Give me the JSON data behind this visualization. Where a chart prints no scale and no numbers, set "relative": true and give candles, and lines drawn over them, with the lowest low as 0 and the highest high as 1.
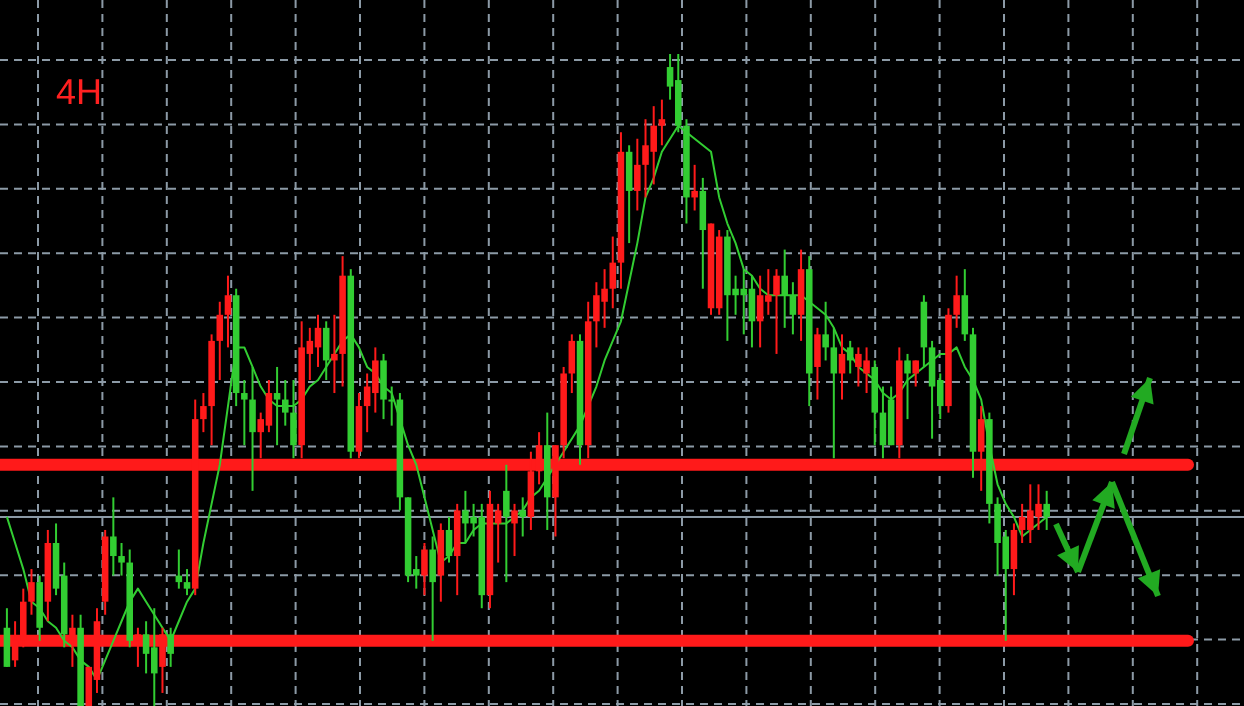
{
  "chart_data": {
    "type": "candlestick",
    "title": "4H",
    "relative": true,
    "grid": true,
    "colors": [
      "#32cd32",
      "#ff1a1a",
      "#ff1a1a",
      "#ff1a1a",
      "#32cd32",
      "#ff1a1a",
      "#32cd32",
      "#32cd32",
      "#ff1a1a",
      "#32cd32",
      "#ff1a1a",
      "#ff1a1a",
      "#ff1a1a",
      "#32cd32",
      "#32cd32",
      "#32cd32",
      "#ff1a1a",
      "#32cd32",
      "#32cd32",
      "#ff1a1a",
      "#32cd32",
      "#32cd32",
      "#32cd32",
      "#ff1a1a",
      "#ff1a1a",
      "#ff1a1a",
      "#ff1a1a",
      "#ff1a1a",
      "#32cd32",
      "#32cd32",
      "#32cd32",
      "#ff1a1a",
      "#ff1a1a",
      "#32cd32",
      "#32cd32",
      "#32cd32",
      "#ff1a1a",
      "#ff1a1a",
      "#ff1a1a",
      "#32cd32",
      "#ff1a1a",
      "#ff1a1a",
      "#32cd32",
      "#ff1a1a",
      "#ff1a1a",
      "#ff1a1a",
      "#32cd32",
      "#32cd32",
      "#32cd32",
      "#32cd32",
      "#32cd32",
      "#ff1a1a",
      "#32cd32",
      "#ff1a1a",
      "#32cd32",
      "#ff1a1a",
      "#32cd32",
      "#32cd32",
      "#32cd32",
      "#ff1a1a",
      "#ff1a1a",
      "#32cd32",
      "#ff1a1a",
      "#32cd32",
      "#ff1a1a",
      "#ff1a1a",
      "#32cd32",
      "#ff1a1a",
      "#ff1a1a",
      "#ff1a1a",
      "#32cd32",
      "#ff1a1a",
      "#ff1a1a",
      "#ff1a1a",
      "#ff1a1a",
      "#ff1a1a",
      "#32cd32",
      "#ff1a1a",
      "#ff1a1a",
      "#ff1a1a",
      "#ff1a1a",
      "#32cd32",
      "#32cd32",
      "#32cd32",
      "#ff1a1a",
      "#32cd32",
      "#ff1a1a",
      "#ff1a1a",
      "#32cd32",
      "#32cd32",
      "#32cd32",
      "#32cd32",
      "#ff1a1a",
      "#ff1a1a",
      "#ff1a1a",
      "#32cd32",
      "#32cd32",
      "#ff1a1a",
      "#32cd32",
      "#ff1a1a",
      "#32cd32",
      "#32cd32",
      "#ff1a1a",
      "#32cd32",
      "#ff1a1a",
      "#ff1a1a",
      "#32cd32",
      "#32cd32",
      "#32cd32",
      "#ff1a1a",
      "#32cd32",
      "#ff1a1a",
      "#32cd32",
      "#32cd32",
      "#32cd32",
      "#ff1a1a",
      "#ff1a1a",
      "#32cd32",
      "#32cd32",
      "#ff1a1a",
      "#32cd32",
      "#32cd32",
      "#32cd32",
      "#ff1a1a",
      "#ff1a1a",
      "#ff1a1a",
      "#ff1a1a",
      "#32cd32"
    ],
    "categories": [
      null,
      null,
      null,
      null,
      null,
      null,
      null,
      null,
      null,
      null,
      null,
      null,
      null,
      null,
      null,
      null,
      null,
      null,
      null,
      null,
      null,
      null,
      null,
      null,
      null,
      null,
      null,
      null,
      null,
      null,
      null,
      null,
      null,
      null,
      null,
      null,
      null,
      null,
      null,
      null,
      null,
      null,
      null,
      null,
      null,
      null,
      null,
      null,
      null,
      null,
      null,
      null,
      null,
      null,
      null,
      null,
      null,
      null,
      null,
      null,
      null,
      null,
      null,
      null,
      null,
      null,
      null,
      null,
      null,
      null,
      null,
      null,
      null,
      null,
      null,
      null,
      null,
      null,
      null,
      null,
      null,
      null,
      null,
      null,
      null,
      null,
      null,
      null,
      null,
      null,
      null,
      null,
      null,
      null,
      null,
      null,
      null,
      null,
      null,
      null,
      null,
      null,
      null,
      null,
      null,
      null,
      null,
      null,
      null,
      null,
      null,
      null,
      null,
      null,
      null,
      null,
      null,
      null,
      null,
      null,
      null,
      null,
      null,
      null,
      null,
      null,
      null,
      null
    ],
    "ohlc": [
      [
        0.12,
        0.15,
        0.06,
        0.06
      ],
      [
        0.07,
        0.13,
        0.06,
        0.1
      ],
      [
        0.1,
        0.18,
        0.09,
        0.16
      ],
      [
        0.16,
        0.21,
        0.14,
        0.19
      ],
      [
        0.19,
        0.2,
        0.1,
        0.12
      ],
      [
        0.16,
        0.27,
        0.13,
        0.25
      ],
      [
        0.25,
        0.28,
        0.17,
        0.18
      ],
      [
        0.2,
        0.22,
        0.09,
        0.11
      ],
      [
        0.1,
        0.14,
        0.06,
        0.12
      ],
      [
        0.12,
        0.14,
        0.0,
        0.0
      ],
      [
        0.0,
        0.06,
        0.0,
        0.06
      ],
      [
        0.04,
        0.15,
        0.02,
        0.13
      ],
      [
        0.16,
        0.27,
        0.14,
        0.26
      ],
      [
        0.26,
        0.32,
        0.2,
        0.23
      ],
      [
        0.23,
        0.25,
        0.2,
        0.22
      ],
      [
        0.22,
        0.24,
        0.09,
        0.1
      ],
      [
        0.1,
        0.12,
        0.06,
        0.11
      ],
      [
        0.11,
        0.13,
        0.05,
        0.08
      ],
      [
        0.09,
        0.15,
        0.0,
        0.05
      ],
      [
        0.06,
        0.12,
        0.02,
        0.11
      ],
      [
        0.11,
        0.12,
        0.06,
        0.08
      ],
      [
        0.2,
        0.24,
        0.18,
        0.19
      ],
      [
        0.19,
        0.21,
        0.17,
        0.18
      ],
      [
        0.18,
        0.47,
        0.17,
        0.44
      ],
      [
        0.44,
        0.48,
        0.42,
        0.46
      ],
      [
        0.46,
        0.57,
        0.4,
        0.56
      ],
      [
        0.56,
        0.62,
        0.5,
        0.6
      ],
      [
        0.6,
        0.66,
        0.55,
        0.63
      ],
      [
        0.63,
        0.64,
        0.46,
        0.48
      ],
      [
        0.48,
        0.5,
        0.4,
        0.47
      ],
      [
        0.47,
        0.52,
        0.33,
        0.42
      ],
      [
        0.42,
        0.45,
        0.38,
        0.44
      ],
      [
        0.43,
        0.5,
        0.42,
        0.48
      ],
      [
        0.48,
        0.52,
        0.4,
        0.47
      ],
      [
        0.47,
        0.5,
        0.43,
        0.45
      ],
      [
        0.45,
        0.5,
        0.38,
        0.4
      ],
      [
        0.4,
        0.59,
        0.38,
        0.55
      ],
      [
        0.54,
        0.58,
        0.5,
        0.56
      ],
      [
        0.55,
        0.6,
        0.52,
        0.58
      ],
      [
        0.58,
        0.59,
        0.5,
        0.53
      ],
      [
        0.53,
        0.6,
        0.48,
        0.54
      ],
      [
        0.54,
        0.69,
        0.49,
        0.66
      ],
      [
        0.66,
        0.67,
        0.38,
        0.39
      ],
      [
        0.39,
        0.48,
        0.38,
        0.46
      ],
      [
        0.46,
        0.51,
        0.42,
        0.49
      ],
      [
        0.48,
        0.55,
        0.45,
        0.53
      ],
      [
        0.53,
        0.54,
        0.44,
        0.47
      ],
      [
        0.47,
        0.49,
        0.43,
        0.47
      ],
      [
        0.47,
        0.48,
        0.3,
        0.32
      ],
      [
        0.32,
        0.32,
        0.19,
        0.2
      ],
      [
        0.21,
        0.23,
        0.18,
        0.2
      ],
      [
        0.2,
        0.25,
        0.17,
        0.24
      ],
      [
        0.24,
        0.26,
        0.1,
        0.19
      ],
      [
        0.2,
        0.28,
        0.16,
        0.27
      ],
      [
        0.27,
        0.29,
        0.22,
        0.23
      ],
      [
        0.23,
        0.31,
        0.17,
        0.3
      ],
      [
        0.3,
        0.33,
        0.25,
        0.28
      ],
      [
        0.29,
        0.31,
        0.26,
        0.28
      ],
      [
        0.29,
        0.31,
        0.15,
        0.17
      ],
      [
        0.17,
        0.33,
        0.15,
        0.31
      ],
      [
        0.28,
        0.31,
        0.22,
        0.3
      ],
      [
        0.33,
        0.37,
        0.19,
        0.29
      ],
      [
        0.28,
        0.31,
        0.23,
        0.3
      ],
      [
        0.3,
        0.32,
        0.26,
        0.29
      ],
      [
        0.29,
        0.39,
        0.27,
        0.36
      ],
      [
        0.36,
        0.42,
        0.34,
        0.4
      ],
      [
        0.4,
        0.45,
        0.27,
        0.32
      ],
      [
        0.32,
        0.4,
        0.26,
        0.4
      ],
      [
        0.4,
        0.52,
        0.38,
        0.51
      ],
      [
        0.51,
        0.57,
        0.48,
        0.56
      ],
      [
        0.56,
        0.57,
        0.37,
        0.4
      ],
      [
        0.4,
        0.62,
        0.38,
        0.59
      ],
      [
        0.59,
        0.65,
        0.55,
        0.63
      ],
      [
        0.62,
        0.67,
        0.58,
        0.64
      ],
      [
        0.64,
        0.72,
        0.61,
        0.68
      ],
      [
        0.68,
        0.88,
        0.64,
        0.85
      ],
      [
        0.85,
        0.86,
        0.71,
        0.79
      ],
      [
        0.79,
        0.87,
        0.76,
        0.83
      ],
      [
        0.83,
        0.9,
        0.78,
        0.86
      ],
      [
        0.85,
        0.92,
        0.8,
        0.89
      ],
      [
        0.89,
        0.93,
        0.86,
        0.9
      ],
      [
        0.98,
        1.0,
        0.93,
        0.95
      ],
      [
        0.96,
        1.0,
        0.88,
        0.89
      ],
      [
        0.89,
        0.9,
        0.74,
        0.78
      ],
      [
        0.78,
        0.83,
        0.76,
        0.79
      ],
      [
        0.79,
        0.81,
        0.64,
        0.73
      ],
      [
        0.61,
        0.74,
        0.6,
        0.74
      ],
      [
        0.61,
        0.73,
        0.6,
        0.72
      ],
      [
        0.72,
        0.73,
        0.56,
        0.63
      ],
      [
        0.64,
        0.66,
        0.6,
        0.63
      ],
      [
        0.64,
        0.67,
        0.57,
        0.63
      ],
      [
        0.64,
        0.66,
        0.55,
        0.59
      ],
      [
        0.59,
        0.66,
        0.55,
        0.63
      ],
      [
        0.62,
        0.67,
        0.6,
        0.63
      ],
      [
        0.63,
        0.67,
        0.54,
        0.66
      ],
      [
        0.66,
        0.7,
        0.58,
        0.63
      ],
      [
        0.63,
        0.65,
        0.57,
        0.6
      ],
      [
        0.6,
        0.7,
        0.56,
        0.67
      ],
      [
        0.67,
        0.69,
        0.46,
        0.51
      ],
      [
        0.52,
        0.58,
        0.47,
        0.57
      ],
      [
        0.57,
        0.62,
        0.53,
        0.55
      ],
      [
        0.55,
        0.58,
        0.38,
        0.51
      ],
      [
        0.51,
        0.57,
        0.47,
        0.54
      ],
      [
        0.55,
        0.56,
        0.51,
        0.53
      ],
      [
        0.52,
        0.55,
        0.49,
        0.54
      ],
      [
        0.51,
        0.55,
        0.48,
        0.53
      ],
      [
        0.52,
        0.53,
        0.4,
        0.45
      ],
      [
        0.45,
        0.49,
        0.38,
        0.4
      ],
      [
        0.47,
        0.49,
        0.4,
        0.4
      ],
      [
        0.4,
        0.55,
        0.38,
        0.53
      ],
      [
        0.53,
        0.54,
        0.44,
        0.51
      ],
      [
        0.51,
        0.53,
        0.49,
        0.53
      ],
      [
        0.62,
        0.63,
        0.52,
        0.55
      ],
      [
        0.55,
        0.56,
        0.41,
        0.49
      ],
      [
        0.5,
        0.51,
        0.44,
        0.46
      ],
      [
        0.46,
        0.61,
        0.45,
        0.6
      ],
      [
        0.6,
        0.66,
        0.58,
        0.63
      ],
      [
        0.63,
        0.67,
        0.56,
        0.57
      ],
      [
        0.57,
        0.58,
        0.35,
        0.39
      ],
      [
        0.39,
        0.46,
        0.33,
        0.44
      ],
      [
        0.44,
        0.45,
        0.28,
        0.31
      ],
      [
        0.31,
        0.32,
        0.2,
        0.25
      ],
      [
        0.26,
        0.27,
        0.1,
        0.21
      ],
      [
        0.21,
        0.28,
        0.17,
        0.27
      ],
      [
        0.27,
        0.31,
        0.25,
        0.29
      ],
      [
        0.27,
        0.34,
        0.25,
        0.3
      ],
      [
        0.29,
        0.34,
        0.27,
        0.31
      ],
      [
        0.31,
        0.33,
        0.27,
        0.29
      ]
    ],
    "series": [
      {
        "type": "line",
        "color": "#32cd32",
        "values": [
          0.29,
          0.25,
          0.21,
          0.16,
          0.15,
          0.13,
          0.12,
          0.1,
          0.09,
          0.07,
          0.06,
          0.04,
          0.07,
          0.1,
          0.13,
          0.16,
          0.18,
          0.16,
          0.14,
          0.12,
          0.1,
          0.13,
          0.16,
          0.18,
          0.25,
          0.31,
          0.37,
          0.46,
          0.55,
          0.55,
          0.52,
          0.49,
          0.47,
          0.46,
          0.46,
          0.46,
          0.47,
          0.49,
          0.5,
          0.52,
          0.54,
          0.56,
          0.57,
          0.55,
          0.52,
          0.51,
          0.49,
          0.48,
          0.44,
          0.4,
          0.37,
          0.32,
          0.27,
          0.22,
          0.23,
          0.25,
          0.25,
          0.27,
          0.28,
          0.28,
          0.28,
          0.28,
          0.29,
          0.3,
          0.32,
          0.33,
          0.35,
          0.37,
          0.39,
          0.41,
          0.43,
          0.46,
          0.49,
          0.53,
          0.56,
          0.59,
          0.65,
          0.71,
          0.78,
          0.81,
          0.85,
          0.87,
          0.89,
          0.88,
          0.87,
          0.86,
          0.85,
          0.78,
          0.74,
          0.71,
          0.67,
          0.66,
          0.64,
          0.63,
          0.63,
          0.63,
          0.63,
          0.63,
          0.62,
          0.61,
          0.6,
          0.58,
          0.55,
          0.54,
          0.52,
          0.51,
          0.5,
          0.48,
          0.47,
          0.48,
          0.5,
          0.51,
          0.52,
          0.53,
          0.54,
          0.54,
          0.55,
          0.52,
          0.5,
          0.47,
          0.4,
          0.34,
          0.31,
          0.29,
          0.26,
          0.27,
          0.28,
          0.29
        ]
      }
    ],
    "ref_lines": [
      {
        "axis": "y",
        "value": 0.37,
        "color": "#ff1a1a"
      },
      {
        "axis": "y",
        "value": 0.1,
        "color": "#ff1a1a"
      },
      {
        "axis": "y",
        "value": 0.29,
        "color": "#8c9aa6"
      }
    ]
  }
}
